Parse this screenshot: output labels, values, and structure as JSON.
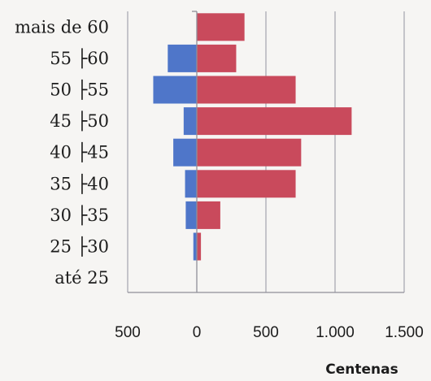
{
  "chart_data": {
    "type": "bar",
    "orientation": "horizontal",
    "stacking": "diverging",
    "categories": [
      "mais de 60",
      "55 ├60",
      "50 ├55",
      "45 ├50",
      "40 ├45",
      "35 ├40",
      "30 ├35",
      "25 ├30",
      "até 25"
    ],
    "series": [
      {
        "color": "#4f76c9",
        "values": [
          0,
          -210,
          -315,
          -95,
          -170,
          -85,
          -80,
          -25,
          0
        ]
      },
      {
        "color": "#c94a5c",
        "values": [
          345,
          285,
          715,
          1120,
          755,
          715,
          170,
          30,
          0
        ]
      }
    ],
    "xlim": [
      -500,
      1500
    ],
    "x_ticks": [
      -500,
      0,
      500,
      1000,
      1500
    ],
    "x_tick_labels": [
      "500",
      "0",
      "500",
      "1.000",
      "1.500"
    ],
    "xlabel": "Centenas",
    "ylabel": "",
    "title": "",
    "grid": "vertical"
  }
}
